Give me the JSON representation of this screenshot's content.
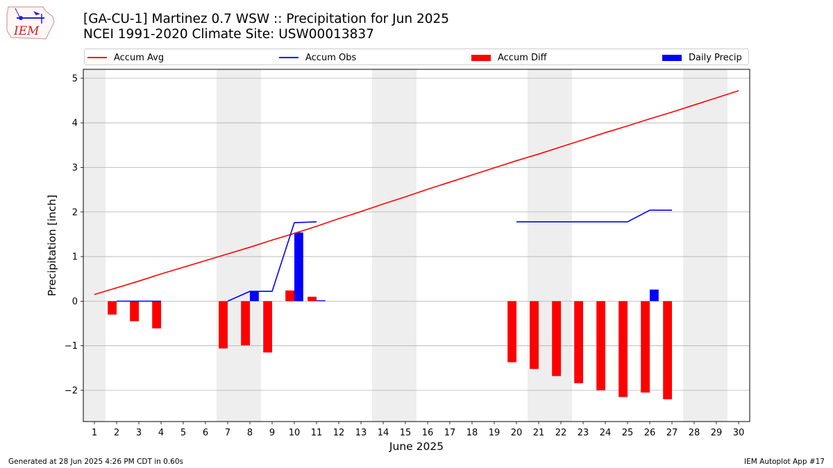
{
  "header": {
    "title_line1": "[GA-CU-1] Martinez 0.7 WSW :: Precipitation for Jun 2025",
    "title_line2": "NCEI 1991-2020 Climate Site: USW00013837"
  },
  "logo": {
    "text": "IEM"
  },
  "footer": {
    "left": "Generated at 28 Jun 2025 4:26 PM CDT in 0.60s",
    "right": "IEM Autoplot App #17"
  },
  "colors": {
    "avg": "#ff0000",
    "obs": "#0000ff",
    "diff": "#ff0000",
    "daily": "#0000ff",
    "shade": "#eeeeee",
    "grid": "#b0b0b0"
  },
  "chart_data": {
    "type": "line",
    "xlabel": "June 2025",
    "ylabel": "Precipitation [inch]",
    "xlim": [
      0.5,
      30.5
    ],
    "ylim": [
      -2.7,
      5.2
    ],
    "x_ticks": [
      1,
      2,
      3,
      4,
      5,
      6,
      7,
      8,
      9,
      10,
      11,
      12,
      13,
      14,
      15,
      16,
      17,
      18,
      19,
      20,
      21,
      22,
      23,
      24,
      25,
      26,
      27,
      28,
      29,
      30
    ],
    "y_ticks": [
      -2,
      -1,
      0,
      1,
      2,
      3,
      4,
      5
    ],
    "grid": "y",
    "weekend_shading": [
      [
        0.5,
        1.5
      ],
      [
        6.5,
        8.5
      ],
      [
        13.5,
        15.5
      ],
      [
        20.5,
        22.5
      ],
      [
        27.5,
        29.5
      ]
    ],
    "legend": [
      {
        "name": "Accum Avg",
        "kind": "line",
        "color": "#ff0000"
      },
      {
        "name": "Accum Obs",
        "kind": "line",
        "color": "#0000ff"
      },
      {
        "name": "Accum Diff",
        "kind": "bar",
        "color": "#ff0000"
      },
      {
        "name": "Daily Precip",
        "kind": "bar",
        "color": "#0000ff"
      }
    ],
    "accum_avg": {
      "x": [
        1,
        2,
        3,
        4,
        5,
        6,
        7,
        8,
        9,
        10,
        11,
        12,
        13,
        14,
        15,
        16,
        17,
        18,
        19,
        20,
        21,
        22,
        23,
        24,
        25,
        26,
        27,
        28,
        29,
        30
      ],
      "y": [
        0.15,
        0.3,
        0.45,
        0.61,
        0.76,
        0.91,
        1.06,
        1.21,
        1.37,
        1.52,
        1.68,
        1.85,
        2.01,
        2.18,
        2.34,
        2.51,
        2.67,
        2.83,
        2.99,
        3.15,
        3.3,
        3.46,
        3.62,
        3.78,
        3.93,
        4.09,
        4.24,
        4.4,
        4.56,
        4.72
      ]
    },
    "accum_obs": [
      {
        "x": [
          2,
          3,
          4
        ],
        "y": [
          0.0,
          0.0,
          0.0
        ]
      },
      {
        "x": [
          7,
          8,
          9,
          10,
          11
        ],
        "y": [
          0.0,
          0.22,
          0.22,
          1.76,
          1.78
        ]
      },
      {
        "x": [
          20,
          21,
          22,
          23,
          24,
          25,
          26,
          27
        ],
        "y": [
          1.78,
          1.78,
          1.78,
          1.78,
          1.78,
          1.78,
          2.04,
          2.04
        ]
      }
    ],
    "accum_diff": {
      "x": [
        2,
        3,
        4,
        7,
        8,
        9,
        10,
        11,
        20,
        21,
        22,
        23,
        24,
        25,
        26,
        27
      ],
      "y": [
        -0.3,
        -0.45,
        -0.61,
        -1.06,
        -0.99,
        -1.15,
        0.24,
        0.1,
        -1.37,
        -1.52,
        -1.68,
        -1.84,
        -2.0,
        -2.15,
        -2.05,
        -2.2
      ]
    },
    "daily_precip": {
      "x": [
        8,
        10,
        11,
        26
      ],
      "y": [
        0.22,
        1.54,
        0.02,
        0.26
      ]
    }
  }
}
